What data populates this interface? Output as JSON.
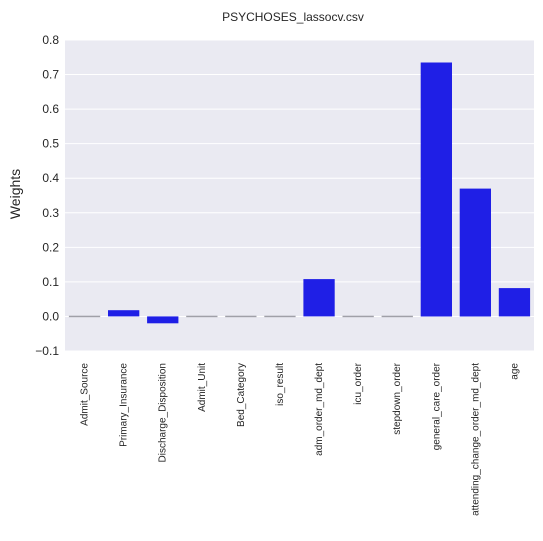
{
  "chart_data": {
    "type": "bar",
    "title": "PSYCHOSES_lassocv.csv",
    "xlabel": "",
    "ylabel": "Weights",
    "ylim": [
      -0.1,
      0.8
    ],
    "yticks": [
      "−0.1",
      "0.0",
      "0.1",
      "0.2",
      "0.3",
      "0.4",
      "0.5",
      "0.6",
      "0.7",
      "0.8"
    ],
    "grid": true,
    "categories": [
      "Admit_Source",
      "Primary_Insurance",
      "Discharge_Disposition",
      "Admit_Unit",
      "Bed_Category",
      "iso_result",
      "adm_order_md_dept",
      "icu_order",
      "stepdown_order",
      "general_care_order",
      "attending_change_order_md_dept",
      "age"
    ],
    "values": [
      0.0,
      0.018,
      -0.02,
      0.0,
      0.0,
      0.0,
      0.108,
      0.0,
      0.0,
      0.735,
      0.37,
      0.082
    ],
    "bar_color": "#1f1fe6",
    "background_color": "#eaeaf2"
  }
}
